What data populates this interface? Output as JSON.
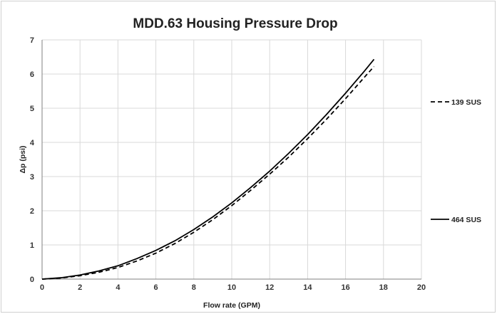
{
  "chart_data": {
    "type": "line",
    "title": "MDD.63 Housing Pressure Drop",
    "xlabel": "Flow rate (GPM)",
    "ylabel": "Δp (psi)",
    "xlim": [
      0,
      20
    ],
    "ylim": [
      0,
      7
    ],
    "x_ticks": [
      "0",
      "2",
      "4",
      "6",
      "8",
      "10",
      "12",
      "14",
      "16",
      "18",
      "20"
    ],
    "y_ticks": [
      "0",
      "1",
      "2",
      "3",
      "4",
      "5",
      "6",
      "7"
    ],
    "grid": true,
    "legend_placement": "right",
    "series": [
      {
        "name": "139 SUS",
        "style": "dashed",
        "color": "#000000",
        "x": [
          0,
          1,
          2,
          3,
          4,
          5,
          6,
          7,
          8,
          9,
          10,
          11,
          12,
          13,
          14,
          15,
          16,
          17,
          17.5
        ],
        "y": [
          0,
          0.03,
          0.1,
          0.2,
          0.34,
          0.53,
          0.76,
          1.04,
          1.37,
          1.74,
          2.15,
          2.6,
          3.07,
          3.57,
          4.11,
          4.68,
          5.28,
          5.91,
          6.22
        ]
      },
      {
        "name": "464 SUS",
        "style": "solid",
        "color": "#000000",
        "x": [
          0,
          1,
          2,
          3,
          4,
          5,
          6,
          7,
          8,
          9,
          10,
          11,
          12,
          13,
          14,
          15,
          16,
          17,
          17.5
        ],
        "y": [
          0,
          0.04,
          0.12,
          0.24,
          0.39,
          0.6,
          0.84,
          1.12,
          1.45,
          1.82,
          2.23,
          2.68,
          3.16,
          3.68,
          4.23,
          4.82,
          5.44,
          6.09,
          6.43
        ]
      }
    ]
  }
}
